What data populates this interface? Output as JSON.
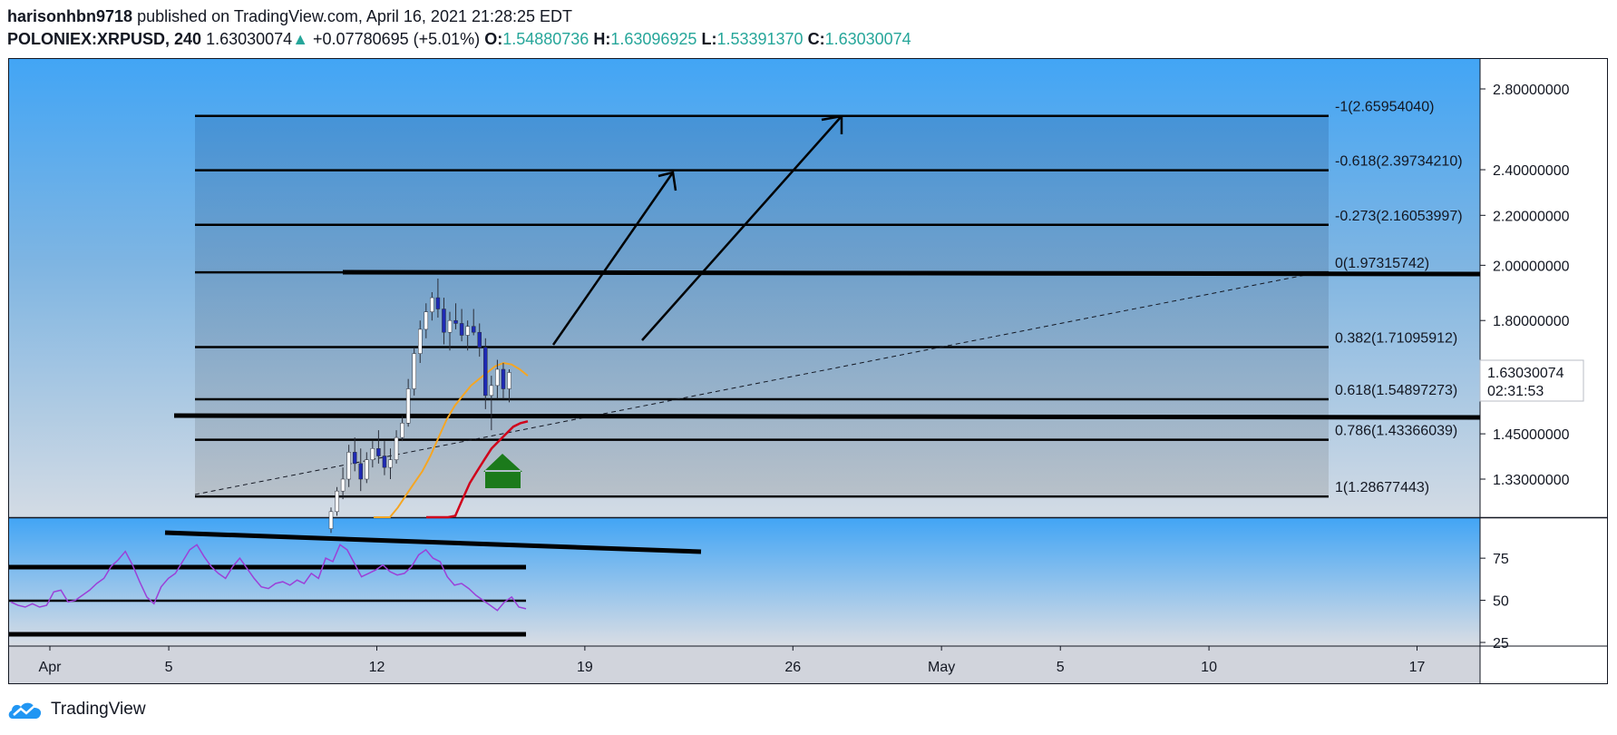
{
  "header": {
    "author": "harisonhbn9718",
    "published_text": "published on TradingView.com, April 16, 2021 21:28:25 EDT",
    "symbol": "POLONIEX:XRPUSD, 240",
    "last_price": "1.63030074",
    "change_arrow": "▲",
    "change": "+0.07780695 (+5.01%)",
    "open_label": "O:",
    "open": "1.54880736",
    "high_label": "H:",
    "high": "1.63096925",
    "low_label": "L:",
    "low": "1.53391370",
    "close_label": "C:",
    "close": "1.63030074"
  },
  "footer": {
    "brand": "TradingView"
  },
  "colors": {
    "up": "#26a69a",
    "candle_up": "#ffffff",
    "candle_down": "#1e2ab5",
    "ma_fast": "#f5a623",
    "ma_slow": "#d0021b",
    "rsi": "#9c40d8",
    "arrow_green": "#1b7a1b"
  },
  "chart_data": {
    "type": "line",
    "price_axis": {
      "ticks": [
        "2.80000000",
        "2.40000000",
        "2.20000000",
        "2.00000000",
        "1.80000000",
        "1.45000000",
        "1.33000000"
      ],
      "tick_values": [
        2.8,
        2.4,
        2.2,
        2.0,
        1.8,
        1.45,
        1.33
      ],
      "scale": "log"
    },
    "current_price_label": "1.63030074",
    "countdown_label": "02:31:53",
    "rsi_axis": {
      "ticks": [
        "75",
        "50",
        "25"
      ],
      "tick_values": [
        75,
        50,
        25
      ]
    },
    "time_axis": {
      "ticks": [
        "Apr",
        "5",
        "12",
        "19",
        "26",
        "May",
        "5",
        "10",
        "17"
      ]
    },
    "fib_levels": [
      {
        "label": "-1(2.65954040)",
        "value": 2.6595404
      },
      {
        "label": "-0.618(2.39734210)",
        "value": 2.3973421
      },
      {
        "label": "-0.273(2.16053997)",
        "value": 2.16053997
      },
      {
        "label": "0(1.97315742)",
        "value": 1.97315742
      },
      {
        "label": "0.382(1.71095912)",
        "value": 1.71095912
      },
      {
        "label": "0.618(1.54897273)",
        "value": 1.54897273
      },
      {
        "label": "0.786(1.43366039)",
        "value": 1.43366039
      },
      {
        "label": "1(1.28677443)",
        "value": 1.28677443
      }
    ],
    "candles": [
      [
        1.21,
        1.26,
        1.2,
        1.25
      ],
      [
        1.25,
        1.31,
        1.24,
        1.3
      ],
      [
        1.3,
        1.36,
        1.28,
        1.33
      ],
      [
        1.33,
        1.42,
        1.31,
        1.4
      ],
      [
        1.4,
        1.44,
        1.35,
        1.37
      ],
      [
        1.37,
        1.41,
        1.3,
        1.33
      ],
      [
        1.33,
        1.4,
        1.32,
        1.38
      ],
      [
        1.38,
        1.43,
        1.36,
        1.41
      ],
      [
        1.41,
        1.46,
        1.37,
        1.39
      ],
      [
        1.39,
        1.43,
        1.34,
        1.36
      ],
      [
        1.36,
        1.41,
        1.33,
        1.38
      ],
      [
        1.38,
        1.46,
        1.37,
        1.44
      ],
      [
        1.44,
        1.5,
        1.43,
        1.48
      ],
      [
        1.48,
        1.61,
        1.47,
        1.58
      ],
      [
        1.58,
        1.71,
        1.56,
        1.69
      ],
      [
        1.69,
        1.8,
        1.66,
        1.77
      ],
      [
        1.77,
        1.86,
        1.74,
        1.83
      ],
      [
        1.83,
        1.9,
        1.8,
        1.88
      ],
      [
        1.88,
        1.95,
        1.81,
        1.84
      ],
      [
        1.84,
        1.88,
        1.72,
        1.76
      ],
      [
        1.76,
        1.83,
        1.7,
        1.8
      ],
      [
        1.8,
        1.86,
        1.77,
        1.79
      ],
      [
        1.79,
        1.84,
        1.73,
        1.75
      ],
      [
        1.75,
        1.8,
        1.7,
        1.78
      ],
      [
        1.78,
        1.84,
        1.75,
        1.76
      ],
      [
        1.76,
        1.79,
        1.68,
        1.71
      ],
      [
        1.71,
        1.74,
        1.52,
        1.56
      ],
      [
        1.56,
        1.62,
        1.46,
        1.59
      ],
      [
        1.59,
        1.67,
        1.55,
        1.64
      ],
      [
        1.64,
        1.66,
        1.55,
        1.58
      ],
      [
        1.58,
        1.64,
        1.54,
        1.63
      ]
    ],
    "ma_fast": [
      1.19,
      1.21,
      1.23,
      1.26,
      1.29,
      1.32,
      1.35,
      1.39,
      1.44,
      1.49,
      1.53,
      1.56,
      1.59,
      1.61,
      1.63,
      1.65,
      1.66,
      1.655,
      1.64,
      1.62
    ],
    "ma_slow": [
      1.12,
      1.14,
      1.17,
      1.2,
      1.24,
      1.28,
      1.32,
      1.35,
      1.38,
      1.41,
      1.43,
      1.45,
      1.47,
      1.48,
      1.485
    ],
    "rsi": [
      49,
      47,
      46,
      48,
      46,
      47,
      55,
      56,
      49,
      50,
      53,
      56,
      60,
      63,
      70,
      74,
      79,
      71,
      61,
      52,
      48,
      58,
      63,
      66,
      73,
      80,
      83,
      76,
      70,
      66,
      63,
      70,
      75,
      69,
      63,
      58,
      57,
      60,
      61,
      59,
      62,
      60,
      66,
      63,
      75,
      73,
      83,
      80,
      72,
      64,
      66,
      68,
      71,
      67,
      65,
      66,
      70,
      77,
      80,
      75,
      73,
      64,
      59,
      60,
      57,
      53,
      50,
      47,
      44,
      49,
      52,
      46,
      45
    ],
    "annotations": {
      "dashed_trendline": "rising support",
      "arrows": [
        "projection to -0.618",
        "projection to -1"
      ],
      "green_arrow": "bounce"
    }
  }
}
